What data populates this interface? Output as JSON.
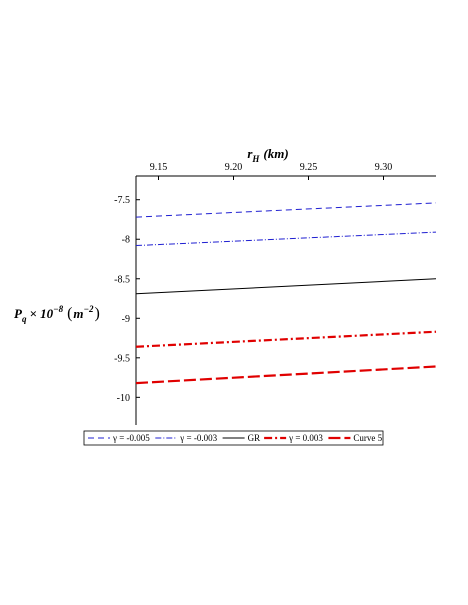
{
  "chart_data": {
    "type": "line",
    "xlabel": {
      "main": "r",
      "sub": "H",
      "unit": "(km)"
    },
    "ylabel": {
      "main": "P",
      "sub": "q",
      "times": "× 10",
      "exp": "−8",
      "unit_open": "(",
      "unit": "m",
      "unit_exp": "−2",
      "unit_close": ")"
    },
    "xlim": [
      9.135,
      9.335
    ],
    "ylim": [
      -10.35,
      -7.2
    ],
    "x_ticks": [
      9.15,
      9.2,
      9.25,
      9.3
    ],
    "x_tick_labels": [
      "9.15",
      "9.20",
      "9.25",
      "9.30"
    ],
    "y_ticks": [
      -7.5,
      -8,
      -8.5,
      -9,
      -9.5,
      -10
    ],
    "y_tick_labels": [
      "-7.5",
      "-8",
      "-8.5",
      "-9",
      "-9.5",
      "-10"
    ],
    "x_axis_position": "top",
    "grid": false,
    "legend_position": "bottom",
    "series": [
      {
        "name": "γ = -0.005",
        "x": [
          9.135,
          9.335
        ],
        "values": [
          -7.72,
          -7.54
        ],
        "color": "#1f1fd1",
        "dash": "6,4",
        "width": 1
      },
      {
        "name": "γ = -0.003",
        "x": [
          9.135,
          9.335
        ],
        "values": [
          -8.08,
          -7.91
        ],
        "color": "#1f1fd1",
        "dash": "6,2,1,2",
        "width": 1
      },
      {
        "name": "GR",
        "x": [
          9.135,
          9.335
        ],
        "values": [
          -8.69,
          -8.5
        ],
        "color": "#000000",
        "dash": "",
        "width": 1
      },
      {
        "name": "γ = 0.003",
        "x": [
          9.135,
          9.335
        ],
        "values": [
          -9.36,
          -9.17
        ],
        "color": "#e00000",
        "dash": "8,3,2,3",
        "width": 2.2
      },
      {
        "name": "Curve 5",
        "x": [
          9.135,
          9.335
        ],
        "values": [
          -9.82,
          -9.61
        ],
        "color": "#e00000",
        "dash": "12,4",
        "width": 2.2
      }
    ]
  }
}
